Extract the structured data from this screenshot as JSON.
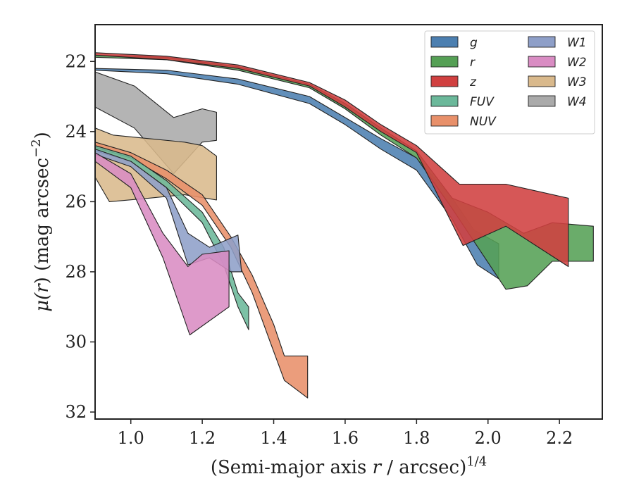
{
  "chart_data": {
    "type": "area",
    "xlabel_main": "(Semi-major axis ",
    "xlabel_r": "r",
    "xlabel_unit": " / arcsec)",
    "xlabel_sup": "1/4",
    "ylabel_mu": "μ(",
    "ylabel_r": "r",
    "ylabel_rest": ") (mag arcsec",
    "ylabel_sup": "−2",
    "ylabel_close": ")",
    "xlim": [
      0.9,
      2.32
    ],
    "ylim": [
      32.2,
      20.95
    ],
    "y_inverted": true,
    "xticks": [
      1.0,
      1.2,
      1.4,
      1.6,
      1.8,
      2.0,
      2.2
    ],
    "xtick_labels": [
      "1.0",
      "1.2",
      "1.4",
      "1.6",
      "1.8",
      "2.0",
      "2.2"
    ],
    "yticks": [
      22,
      24,
      26,
      28,
      30,
      32
    ],
    "ytick_labels": [
      "22",
      "24",
      "26",
      "28",
      "30",
      "32"
    ],
    "grid": false,
    "legend_position": "top-right",
    "legend_columns": 2,
    "series": [
      {
        "name": "W4",
        "color": "#aaaaaa",
        "upper": [
          [
            0.9,
            22.3
          ],
          [
            1.01,
            22.7
          ],
          [
            1.12,
            23.6
          ],
          [
            1.2,
            23.35
          ],
          [
            1.24,
            23.45
          ]
        ],
        "lower": [
          [
            0.9,
            23.3
          ],
          [
            1.01,
            23.9
          ],
          [
            1.12,
            25.2
          ],
          [
            1.2,
            24.3
          ],
          [
            1.24,
            24.25
          ]
        ]
      },
      {
        "name": "W3",
        "color": "#d9b98c",
        "upper": [
          [
            0.9,
            23.9
          ],
          [
            0.95,
            24.1
          ],
          [
            1.05,
            24.2
          ],
          [
            1.15,
            24.3
          ],
          [
            1.2,
            24.4
          ],
          [
            1.24,
            24.7
          ]
        ],
        "lower": [
          [
            0.9,
            25.3
          ],
          [
            0.94,
            26.0
          ],
          [
            1.05,
            25.9
          ],
          [
            1.15,
            25.8
          ],
          [
            1.24,
            25.95
          ]
        ]
      },
      {
        "name": "NUV",
        "color": "#e8906a",
        "upper": [
          [
            0.9,
            24.3
          ],
          [
            1.0,
            24.6
          ],
          [
            1.1,
            25.1
          ],
          [
            1.2,
            25.8
          ],
          [
            1.28,
            27.0
          ],
          [
            1.34,
            28.1
          ],
          [
            1.4,
            29.5
          ],
          [
            1.43,
            30.4
          ],
          [
            1.495,
            30.4
          ]
        ],
        "lower": [
          [
            0.9,
            24.45
          ],
          [
            1.0,
            24.75
          ],
          [
            1.1,
            25.35
          ],
          [
            1.2,
            26.1
          ],
          [
            1.28,
            27.3
          ],
          [
            1.34,
            28.6
          ],
          [
            1.39,
            30.0
          ],
          [
            1.43,
            31.1
          ],
          [
            1.495,
            31.6
          ]
        ]
      },
      {
        "name": "FUV",
        "color": "#6bb89a",
        "upper": [
          [
            0.9,
            24.4
          ],
          [
            1.0,
            24.7
          ],
          [
            1.1,
            25.4
          ],
          [
            1.2,
            26.3
          ],
          [
            1.26,
            27.3
          ],
          [
            1.3,
            28.6
          ],
          [
            1.33,
            29.0
          ]
        ],
        "lower": [
          [
            0.9,
            24.55
          ],
          [
            1.0,
            24.85
          ],
          [
            1.1,
            25.6
          ],
          [
            1.2,
            26.6
          ],
          [
            1.26,
            27.8
          ],
          [
            1.3,
            29.0
          ],
          [
            1.33,
            29.65
          ]
        ]
      },
      {
        "name": "W1",
        "color": "#8e9fc8",
        "upper": [
          [
            0.9,
            24.5
          ],
          [
            1.0,
            24.85
          ],
          [
            1.1,
            25.6
          ],
          [
            1.16,
            26.9
          ],
          [
            1.22,
            27.3
          ],
          [
            1.3,
            26.95
          ],
          [
            1.31,
            28.0
          ]
        ],
        "lower": [
          [
            0.9,
            24.65
          ],
          [
            1.0,
            25.0
          ],
          [
            1.1,
            25.9
          ],
          [
            1.16,
            27.8
          ],
          [
            1.22,
            27.6
          ],
          [
            1.28,
            28.0
          ],
          [
            1.31,
            28.0
          ]
        ]
      },
      {
        "name": "W2",
        "color": "#d98cc3",
        "upper": [
          [
            0.9,
            24.6
          ],
          [
            1.0,
            25.2
          ],
          [
            1.09,
            26.9
          ],
          [
            1.16,
            27.85
          ],
          [
            1.2,
            27.5
          ],
          [
            1.275,
            27.4
          ]
        ],
        "lower": [
          [
            0.9,
            24.85
          ],
          [
            1.0,
            25.6
          ],
          [
            1.09,
            27.6
          ],
          [
            1.165,
            29.8
          ],
          [
            1.275,
            29.0
          ]
        ]
      },
      {
        "name": "g",
        "color": "#4c7fb0",
        "upper": [
          [
            0.9,
            22.2
          ],
          [
            1.1,
            22.25
          ],
          [
            1.3,
            22.5
          ],
          [
            1.5,
            23.0
          ],
          [
            1.6,
            23.6
          ],
          [
            1.7,
            24.2
          ],
          [
            1.8,
            24.75
          ],
          [
            1.9,
            25.9
          ],
          [
            1.96,
            26.8
          ],
          [
            2.03,
            27.2
          ]
        ],
        "lower": [
          [
            0.9,
            22.25
          ],
          [
            1.1,
            22.35
          ],
          [
            1.3,
            22.65
          ],
          [
            1.5,
            23.2
          ],
          [
            1.6,
            23.8
          ],
          [
            1.7,
            24.5
          ],
          [
            1.8,
            25.1
          ],
          [
            1.9,
            26.5
          ],
          [
            1.97,
            27.8
          ],
          [
            2.03,
            28.2
          ]
        ]
      },
      {
        "name": "r",
        "color": "#55a055",
        "upper": [
          [
            0.9,
            21.82
          ],
          [
            1.1,
            21.88
          ],
          [
            1.3,
            22.15
          ],
          [
            1.5,
            22.65
          ],
          [
            1.6,
            23.2
          ],
          [
            1.7,
            23.9
          ],
          [
            1.8,
            24.55
          ],
          [
            1.9,
            25.9
          ],
          [
            2.0,
            26.3
          ],
          [
            2.1,
            26.9
          ],
          [
            2.18,
            26.6
          ],
          [
            2.295,
            26.7
          ]
        ],
        "lower": [
          [
            0.9,
            21.88
          ],
          [
            1.1,
            21.95
          ],
          [
            1.3,
            22.25
          ],
          [
            1.5,
            22.75
          ],
          [
            1.6,
            23.35
          ],
          [
            1.7,
            24.1
          ],
          [
            1.8,
            24.75
          ],
          [
            1.9,
            26.2
          ],
          [
            2.05,
            28.5
          ],
          [
            2.11,
            28.4
          ],
          [
            2.18,
            27.7
          ],
          [
            2.295,
            27.7
          ]
        ]
      },
      {
        "name": "z",
        "color": "#d04040",
        "upper": [
          [
            0.9,
            21.75
          ],
          [
            1.1,
            21.85
          ],
          [
            1.3,
            22.1
          ],
          [
            1.5,
            22.6
          ],
          [
            1.6,
            23.1
          ],
          [
            1.7,
            23.8
          ],
          [
            1.8,
            24.4
          ],
          [
            1.92,
            25.5
          ],
          [
            2.05,
            25.5
          ],
          [
            2.225,
            25.9
          ]
        ],
        "lower": [
          [
            0.9,
            21.82
          ],
          [
            1.1,
            21.95
          ],
          [
            1.3,
            22.2
          ],
          [
            1.5,
            22.7
          ],
          [
            1.6,
            23.3
          ],
          [
            1.7,
            24.0
          ],
          [
            1.8,
            24.6
          ],
          [
            1.93,
            27.25
          ],
          [
            2.05,
            26.7
          ],
          [
            2.225,
            27.85
          ]
        ]
      }
    ],
    "legend_entries": [
      {
        "name": "g",
        "color": "#4c7fb0"
      },
      {
        "name": "r",
        "color": "#55a055"
      },
      {
        "name": "z",
        "color": "#d04040"
      },
      {
        "name": "FUV",
        "color": "#6bb89a"
      },
      {
        "name": "NUV",
        "color": "#e8906a"
      },
      {
        "name": "W1",
        "color": "#8e9fc8"
      },
      {
        "name": "W2",
        "color": "#d98cc3"
      },
      {
        "name": "W3",
        "color": "#d9b98c"
      },
      {
        "name": "W4",
        "color": "#aaaaaa"
      }
    ]
  }
}
